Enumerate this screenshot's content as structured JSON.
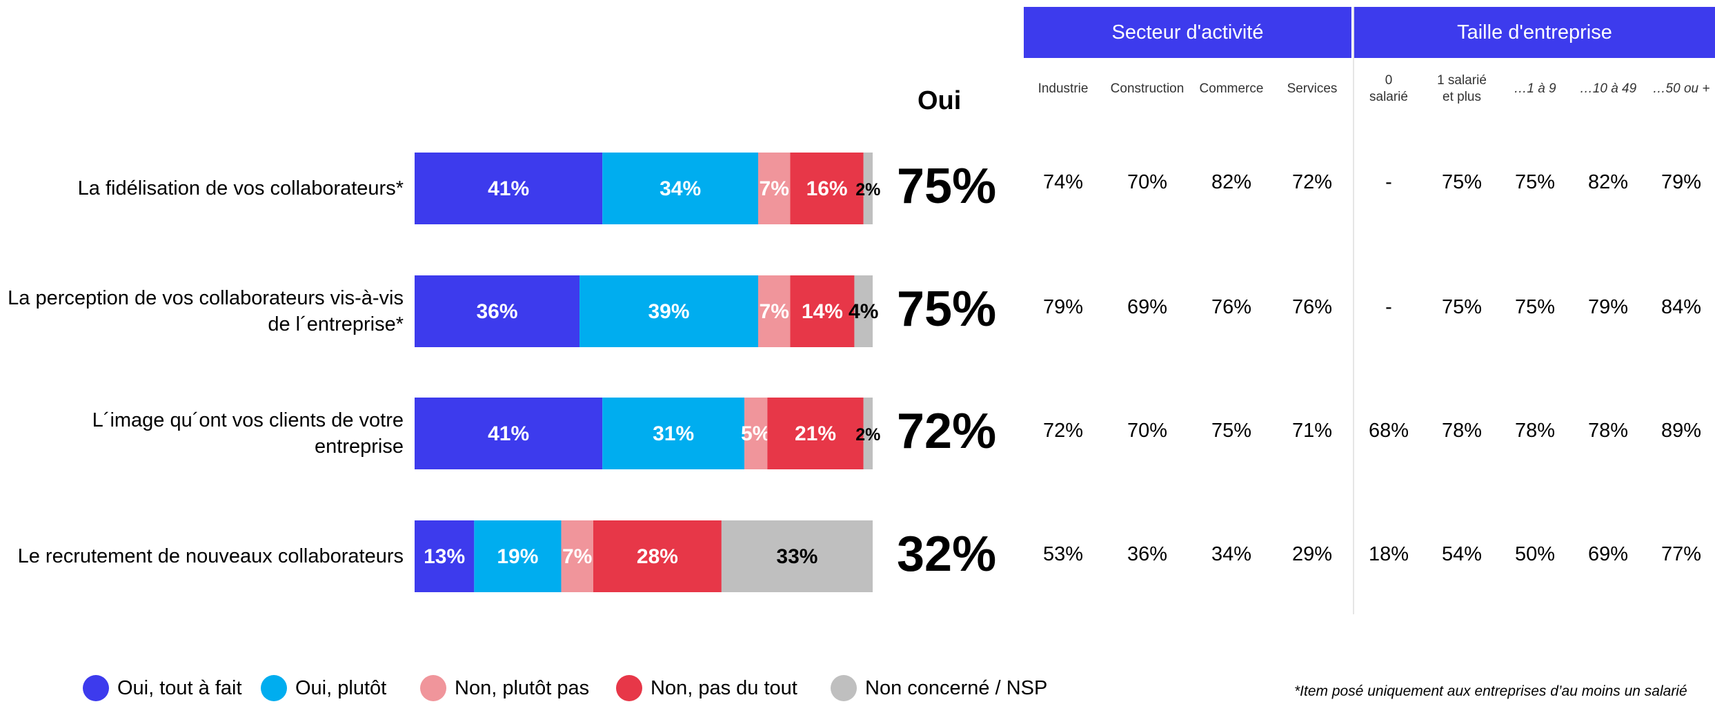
{
  "chart_data": [
    {
      "type": "bar",
      "orientation": "horizontal",
      "stacked": true,
      "categories": [
        "La fidélisation de vos collaborateurs*",
        "La perception de vos collaborateurs vis-à-vis de l´entreprise*",
        "L´image qu´ont vos clients de votre entreprise",
        "Le recrutement de nouveaux collaborateurs"
      ],
      "series": [
        {
          "name": "Oui, tout à fait",
          "color": "#3d3bed",
          "values": [
            41,
            36,
            41,
            13
          ],
          "labels": [
            "41%",
            "36%",
            "41%",
            "13%"
          ]
        },
        {
          "name": "Oui, plutôt",
          "color": "#00adef",
          "values": [
            34,
            39,
            31,
            19
          ],
          "labels": [
            "34%",
            "39%",
            "31%",
            "19%"
          ]
        },
        {
          "name": "Non, plutôt pas",
          "color": "#f0959b",
          "values": [
            7,
            7,
            5,
            7
          ],
          "labels": [
            "7%",
            "7%",
            "5%",
            "7%"
          ]
        },
        {
          "name": "Non, pas du tout",
          "color": "#e73748",
          "values": [
            16,
            14,
            21,
            28
          ],
          "labels": [
            "16%",
            "14%",
            "21%",
            "28%"
          ]
        },
        {
          "name": "Non concerné / NSP",
          "color": "#bfbfbf",
          "values": [
            2,
            4,
            2,
            33
          ],
          "labels": [
            "2%",
            "4%",
            "2%",
            "33%"
          ]
        }
      ],
      "xlim": [
        0,
        100
      ],
      "legend_position": "bottom",
      "grid": false
    },
    {
      "type": "table",
      "title": "Oui",
      "values": [
        "75%",
        "75%",
        "72%",
        "32%"
      ]
    },
    {
      "type": "table",
      "groups": [
        {
          "name": "Secteur d'activité",
          "columns": [
            "Industrie",
            "Construction",
            "Commerce",
            "Services"
          ]
        },
        {
          "name": "Taille d'entreprise",
          "columns": [
            "0 salarié",
            "1 salarié et plus",
            "…1 à 9",
            "…10 à 49",
            "…50 ou +"
          ]
        }
      ],
      "rows": [
        [
          "74%",
          "70%",
          "82%",
          "72%",
          "-",
          "75%",
          "75%",
          "82%",
          "79%"
        ],
        [
          "79%",
          "69%",
          "76%",
          "76%",
          "-",
          "75%",
          "75%",
          "79%",
          "84%"
        ],
        [
          "72%",
          "70%",
          "75%",
          "71%",
          "68%",
          "78%",
          "78%",
          "78%",
          "89%"
        ],
        [
          "53%",
          "36%",
          "34%",
          "29%",
          "18%",
          "54%",
          "50%",
          "69%",
          "77%"
        ]
      ]
    }
  ],
  "row_labels": [
    [
      "La fidélisation de vos collaborateurs*"
    ],
    [
      "La perception de vos collaborateurs vis-à-vis",
      "de l´entreprise*"
    ],
    [
      "L´image qu´ont vos clients de votre",
      "entreprise"
    ],
    [
      "Le recrutement de nouveaux collaborateurs"
    ]
  ],
  "oui": {
    "header": "Oui",
    "values": [
      "75%",
      "75%",
      "72%",
      "32%"
    ]
  },
  "table": {
    "group_headers": [
      "Secteur d'activité",
      "Taille d'entreprise"
    ],
    "columns": [
      {
        "lines": [
          "Industrie"
        ],
        "italic": false
      },
      {
        "lines": [
          "Construction"
        ],
        "italic": false
      },
      {
        "lines": [
          "Commerce"
        ],
        "italic": false
      },
      {
        "lines": [
          "Services"
        ],
        "italic": false
      },
      {
        "lines": [
          "0",
          "salarié"
        ],
        "italic": false
      },
      {
        "lines": [
          "1 salarié",
          "et plus"
        ],
        "italic": false
      },
      {
        "lines": [
          "…1 à 9"
        ],
        "italic": true
      },
      {
        "lines": [
          "…10 à 49"
        ],
        "italic": true
      },
      {
        "lines": [
          "…50 ou +"
        ],
        "italic": true
      }
    ],
    "rows": [
      [
        "74%",
        "70%",
        "82%",
        "72%",
        "-",
        "75%",
        "75%",
        "82%",
        "79%"
      ],
      [
        "79%",
        "69%",
        "76%",
        "76%",
        "-",
        "75%",
        "75%",
        "79%",
        "84%"
      ],
      [
        "72%",
        "70%",
        "75%",
        "71%",
        "68%",
        "78%",
        "78%",
        "78%",
        "89%"
      ],
      [
        "53%",
        "36%",
        "34%",
        "29%",
        "18%",
        "54%",
        "50%",
        "69%",
        "77%"
      ]
    ]
  },
  "legend": [
    {
      "label": "Oui, tout à fait",
      "color": "#3d3bed"
    },
    {
      "label": "Oui, plutôt",
      "color": "#00adef"
    },
    {
      "label": "Non, plutôt pas",
      "color": "#f0959b"
    },
    {
      "label": "Non, pas du tout",
      "color": "#e73748"
    },
    {
      "label": "Non concerné / NSP",
      "color": "#bfbfbf"
    }
  ],
  "footnote": "*Item posé uniquement aux entreprises d’au moins un salarié"
}
